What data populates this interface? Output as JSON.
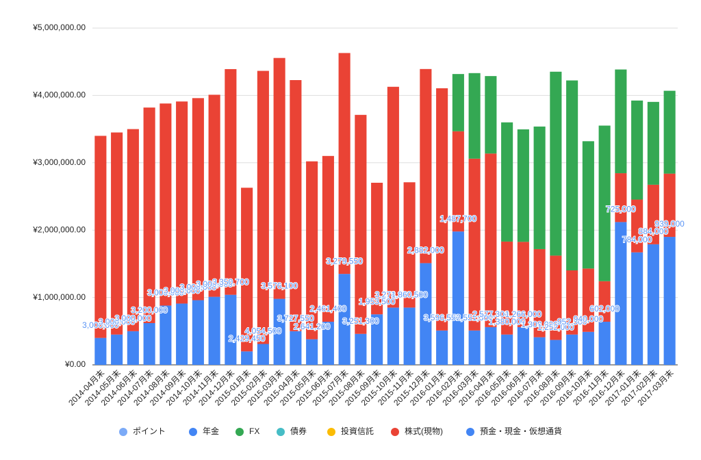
{
  "chart_data": {
    "type": "bar",
    "stacked": true,
    "categories": [
      "2014-04月末",
      "2014-05月末",
      "2014-06月末",
      "2014-07月末",
      "2014-08月末",
      "2014-09月末",
      "2014-10月末",
      "2014-11月末",
      "2014-12月末",
      "2015-01月末",
      "2015-02月末",
      "2015-03月末",
      "2015-04月末",
      "2015-05月末",
      "2015-06月末",
      "2015-07月末",
      "2015-08月末",
      "2015-09月末",
      "2015-10月末",
      "2015-11月末",
      "2015-12月末",
      "2016-01月末",
      "2016-02月末",
      "2016-03月末",
      "2016-04月末",
      "2016-05月末",
      "2016-06月末",
      "2016-07月末",
      "2016-08月末",
      "2016-09月末",
      "2016-10月末",
      "2016-11月末",
      "2016-12月末",
      "2017-01月末",
      "2017-02月末",
      "2017-03月末"
    ],
    "series": [
      {
        "name": "ポイント",
        "color": "#7baaf7",
        "values": [
          0,
          0,
          0,
          0,
          0,
          0,
          0,
          0,
          0,
          0,
          0,
          0,
          0,
          0,
          0,
          0,
          0,
          0,
          0,
          0,
          0,
          0,
          0,
          0,
          0,
          0,
          0,
          0,
          0,
          0,
          0,
          0,
          0,
          0,
          0,
          0
        ]
      },
      {
        "name": "年金",
        "color": "#4285f4",
        "values": [
          0,
          0,
          0,
          0,
          0,
          0,
          0,
          0,
          0,
          0,
          0,
          0,
          0,
          0,
          0,
          0,
          0,
          0,
          0,
          0,
          0,
          0,
          0,
          0,
          0,
          0,
          0,
          0,
          0,
          0,
          0,
          0,
          0,
          0,
          0,
          0
        ]
      },
      {
        "name": "FX",
        "color": "#34a853",
        "values": [
          0,
          0,
          0,
          0,
          0,
          0,
          0,
          0,
          0,
          0,
          0,
          0,
          0,
          0,
          0,
          0,
          0,
          0,
          0,
          0,
          0,
          0,
          850000,
          1270000,
          1150000,
          1770000,
          1670000,
          1820000,
          2730000,
          2820000,
          1890000,
          2310000,
          1540000,
          1470000,
          1230000,
          1230000
        ]
      },
      {
        "name": "債券",
        "color": "#46bdc6",
        "values": [
          0,
          0,
          0,
          0,
          0,
          0,
          0,
          0,
          0,
          0,
          0,
          0,
          0,
          0,
          0,
          0,
          0,
          0,
          0,
          0,
          0,
          0,
          0,
          0,
          0,
          0,
          0,
          0,
          0,
          0,
          0,
          0,
          0,
          0,
          0,
          0
        ]
      },
      {
        "name": "投資信託",
        "color": "#fbbc04",
        "values": [
          0,
          0,
          0,
          0,
          0,
          0,
          0,
          0,
          0,
          0,
          0,
          0,
          0,
          0,
          0,
          0,
          0,
          0,
          0,
          0,
          0,
          0,
          0,
          0,
          0,
          0,
          0,
          0,
          0,
          0,
          0,
          0,
          0,
          0,
          0,
          0
        ]
      },
      {
        "name": "株式(現物)",
        "color": "#ea4335",
        "values": [
          3000000,
          3000000,
          3000000,
          3200000,
          3000000,
          3000000,
          3000000,
          3000000,
          3350700,
          2429450,
          4054500,
          3576100,
          3727550,
          2641200,
          2461400,
          3279550,
          3251300,
          1953500,
          3278200,
          1860500,
          2882000,
          3596550,
          1487700,
          2551300,
          2577300,
          1380000,
          1266000,
          1308000,
          1252000,
          952500,
          940000,
          602000,
          725000,
          784000,
          884000,
          939000
        ],
        "value_labels": [
          "3,000,000",
          "3,000,000",
          "3,000,000",
          "3,200,000",
          "3,000,000",
          "3,000,000",
          "3,000,000",
          "3,000,000",
          "3,350,700",
          "2,429,450",
          "4,054,500",
          "3,576,100",
          "3,727,550",
          "2,641,200",
          "2,461,400",
          "3,279,550",
          "3,251,300",
          "1,953,500",
          "3,278,200",
          "1,860,500",
          "2,882,000",
          "3,596,550",
          "1,487,700",
          "2,551,300",
          "2,577,300",
          "1,380,000",
          "1,266,000",
          "1,308,000",
          "1,252,000",
          "952,500",
          "940,000",
          "602,000",
          "725,000",
          "784,000",
          "884,000",
          "939,000"
        ]
      },
      {
        "name": "預金・現金・仮想通貨",
        "color": "#4285f4",
        "values": [
          400000,
          450000,
          500000,
          620000,
          880000,
          910000,
          960000,
          1010000,
          1040000,
          200000,
          310000,
          980000,
          500000,
          380000,
          640000,
          1350000,
          460000,
          750000,
          850000,
          850000,
          1510000,
          510000,
          1980000,
          510000,
          560000,
          450000,
          560000,
          410000,
          370000,
          450000,
          490000,
          640000,
          2120000,
          1670000,
          1790000,
          1900000
        ]
      }
    ],
    "ylim": [
      0,
      5000000
    ],
    "yticks": [
      {
        "value": 0,
        "label": "¥0.00"
      },
      {
        "value": 1000000,
        "label": "¥1,000,000.00"
      },
      {
        "value": 2000000,
        "label": "¥2,000,000.00"
      },
      {
        "value": 3000000,
        "label": "¥3,000,000.00"
      },
      {
        "value": 4000000,
        "label": "¥4,000,000.00"
      },
      {
        "value": 5000000,
        "label": "¥5,000,000.00"
      }
    ],
    "grid": true,
    "legend": "bottom"
  }
}
